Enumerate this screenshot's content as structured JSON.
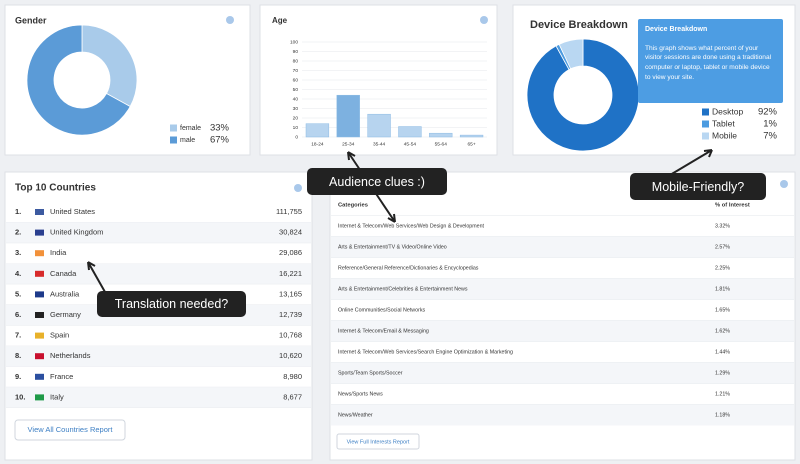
{
  "gender": {
    "type": "pie",
    "title": "Gender",
    "labels": [
      "female",
      "male"
    ],
    "values": [
      33,
      67
    ],
    "value_labels": [
      "33%",
      "67%"
    ],
    "colors": [
      "#a9cbea",
      "#5b9bd7"
    ]
  },
  "age": {
    "type": "bar",
    "title": "Age",
    "categories": [
      "18-24",
      "25-34",
      "35-44",
      "45-54",
      "55-64",
      "65+"
    ],
    "values": [
      14,
      44,
      24,
      11,
      4,
      2
    ],
    "colors": [
      "#b7d4ef",
      "#7db1e0",
      "#b7d4ef",
      "#b7d4ef",
      "#b7d4ef",
      "#b7d4ef"
    ],
    "ylim": [
      0,
      100
    ],
    "yticks": [
      0,
      10,
      20,
      30,
      40,
      50,
      60,
      70,
      80,
      90,
      100
    ],
    "grid": true
  },
  "device": {
    "type": "pie",
    "title": "Device Breakdown",
    "labels": [
      "Desktop",
      "Tablet",
      "Mobile"
    ],
    "values": [
      92,
      1,
      7
    ],
    "value_labels": [
      "92%",
      "1%",
      "7%"
    ],
    "colors": [
      "#1f72c6",
      "#4c9be0",
      "#b9d7f2"
    ]
  },
  "device_tooltip": {
    "title": "Device Breakdown",
    "text": "This graph shows what percent of your visitor sessions are done using a traditional computer or laptop, tablet or mobile device to view your site."
  },
  "countries": {
    "title": "Top 10 Countries",
    "rows": [
      [
        "1.",
        "United States",
        "111,755"
      ],
      [
        "2.",
        "United Kingdom",
        "30,824"
      ],
      [
        "3.",
        "India",
        "29,086"
      ],
      [
        "4.",
        "Canada",
        "16,221"
      ],
      [
        "5.",
        "Australia",
        "13,165"
      ],
      [
        "6.",
        "Germany",
        "12,739"
      ],
      [
        "7.",
        "Spain",
        "10,768"
      ],
      [
        "8.",
        "Netherlands",
        "10,620"
      ],
      [
        "9.",
        "France",
        "8,980"
      ],
      [
        "10.",
        "Italy",
        "8,677"
      ]
    ],
    "button": "View All Countries Report"
  },
  "interests": {
    "headers": [
      "Categories",
      "% of Interest"
    ],
    "rows": [
      [
        "Internet & Telecom/Web Services/Web Design & Development",
        "3.32%"
      ],
      [
        "Arts & Entertainment/TV & Video/Online Video",
        "2.57%"
      ],
      [
        "Reference/General Reference/Dictionaries & Encyclopedias",
        "2.25%"
      ],
      [
        "Arts & Entertainment/Celebrities & Entertainment News",
        "1.81%"
      ],
      [
        "Online Communities/Social Networks",
        "1.65%"
      ],
      [
        "Internet & Telecom/Email & Messaging",
        "1.62%"
      ],
      [
        "Internet & Telecom/Web Services/Search Engine Optimization & Marketing",
        "1.44%"
      ],
      [
        "Sports/Team Sports/Soccer",
        "1.29%"
      ],
      [
        "News/Sports News",
        "1.21%"
      ],
      [
        "News/Weather",
        "1.18%"
      ]
    ],
    "button": "View Full Interests Report"
  },
  "callouts": [
    "Audience clues :)",
    "Mobile-Friendly?",
    "Translation needed?"
  ]
}
